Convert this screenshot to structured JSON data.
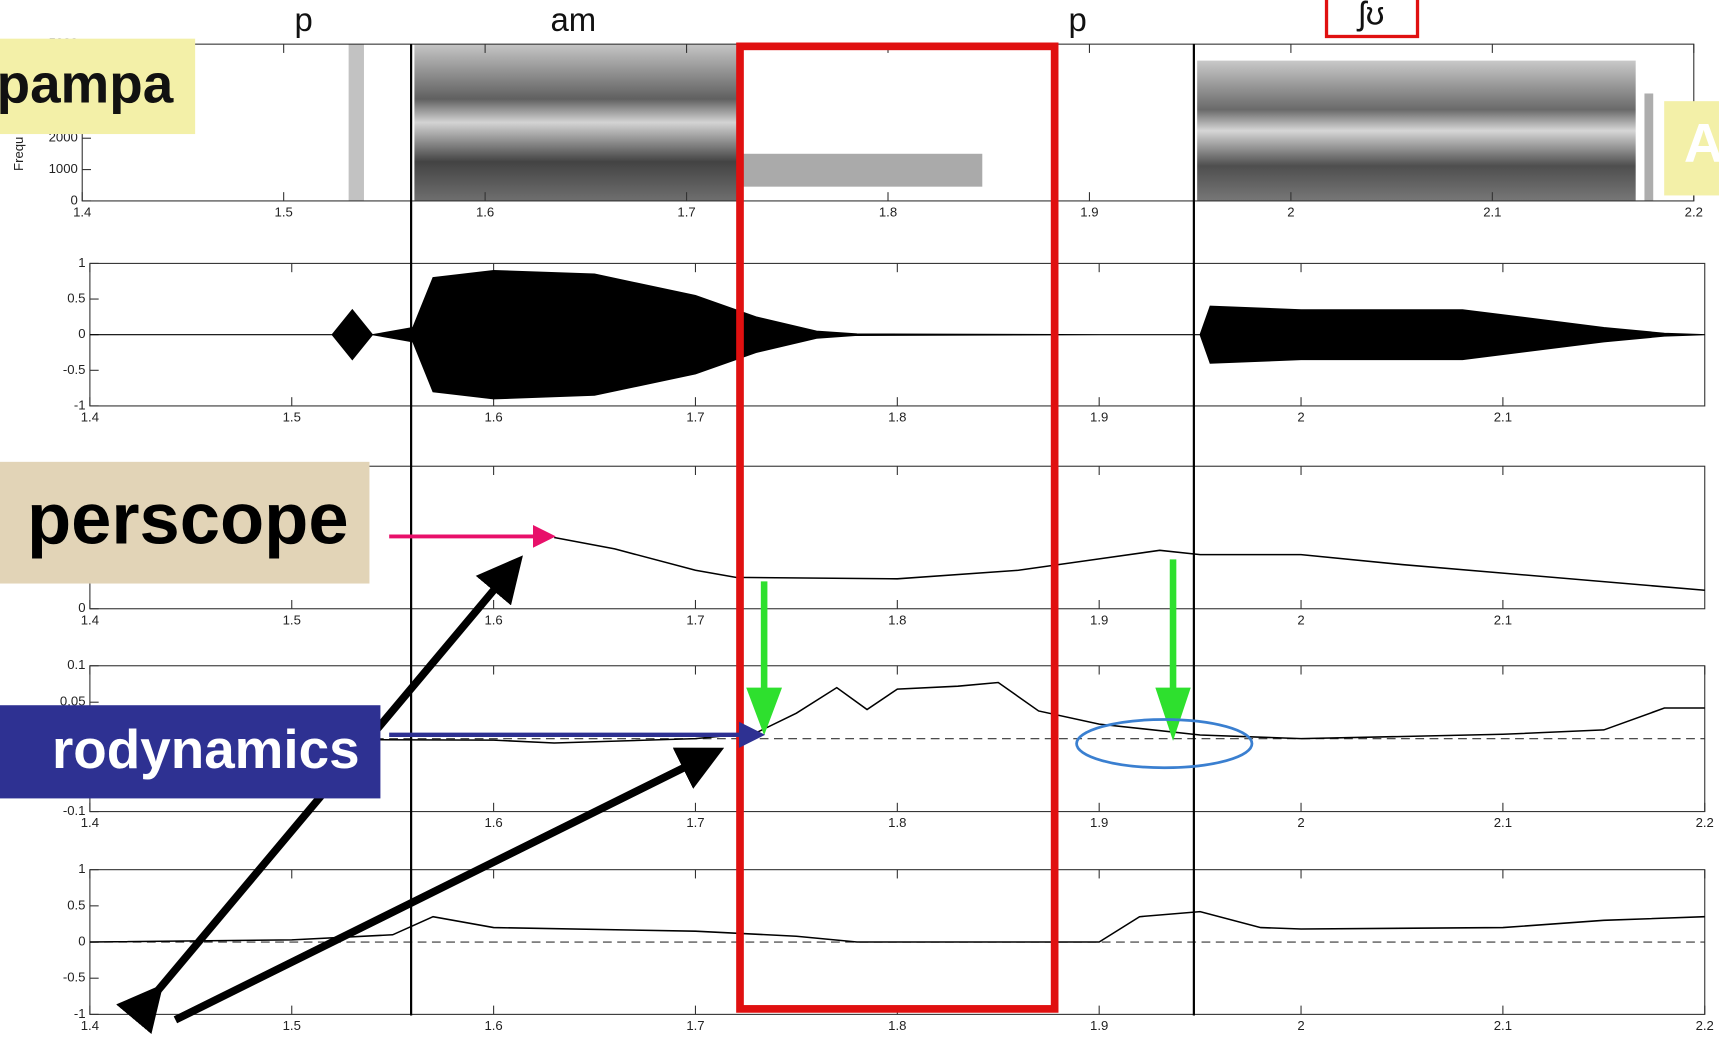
{
  "annotations": {
    "phonemes": [
      "p",
      "am",
      "p",
      "ʃʊ"
    ],
    "labels": [
      "pampa",
      "perscope",
      "rodynamics",
      "A"
    ]
  },
  "chart_data": [
    {
      "type": "spectrogram",
      "ylabel": "Frequ",
      "xlim": [
        1.4,
        2.2
      ],
      "xticks": [
        1.4,
        1.5,
        1.6,
        1.7,
        1.8,
        1.9,
        2,
        2.1,
        2.2
      ],
      "ylim": [
        0,
        5000
      ],
      "yticks": [
        0,
        1000,
        2000,
        5000
      ]
    },
    {
      "type": "waveform",
      "xlim": [
        1.4,
        2.2
      ],
      "xticks": [
        1.4,
        1.5,
        1.6,
        1.7,
        1.8,
        1.9,
        2,
        2.1
      ],
      "ylim": [
        -1,
        1
      ],
      "yticks": [
        1,
        0.5,
        0,
        -0.5,
        -1
      ],
      "x": [
        1.4,
        1.52,
        1.53,
        1.54,
        1.56,
        1.57,
        1.6,
        1.65,
        1.7,
        1.73,
        1.76,
        1.78,
        1.9,
        1.95,
        1.955,
        2.0,
        2.08,
        2.15,
        2.18,
        2.2
      ],
      "values": [
        0,
        0,
        0.35,
        0,
        0.1,
        0.8,
        0.9,
        0.85,
        0.55,
        0.25,
        0.05,
        0.01,
        0,
        0,
        0.4,
        0.35,
        0.35,
        0.1,
        0.02,
        0
      ],
      "color": "#000"
    },
    {
      "type": "line",
      "xlim": [
        1.4,
        2.2
      ],
      "xticks": [
        1.4,
        1.5,
        1.6,
        1.7,
        1.8,
        1.9,
        2,
        2.1
      ],
      "ylim": [
        0,
        1
      ],
      "yticks": [
        0
      ],
      "x": [
        1.63,
        1.66,
        1.7,
        1.72,
        1.8,
        1.86,
        1.9,
        1.93,
        1.95,
        2.0,
        2.05,
        2.1,
        2.2
      ],
      "values": [
        0.5,
        0.42,
        0.27,
        0.22,
        0.21,
        0.27,
        0.35,
        0.41,
        0.38,
        0.38,
        0.31,
        0.25,
        0.13
      ],
      "color": "#000"
    },
    {
      "type": "line",
      "xlim": [
        1.4,
        2.2
      ],
      "xticks": [
        1.4,
        1.6,
        1.7,
        1.8,
        1.9,
        2,
        2.1,
        2.2
      ],
      "ylim": [
        -0.1,
        0.1
      ],
      "yticks": [
        0.1,
        0.05,
        -0.1
      ],
      "hline": 0,
      "x": [
        1.4,
        1.6,
        1.63,
        1.7,
        1.73,
        1.75,
        1.77,
        1.785,
        1.8,
        1.83,
        1.85,
        1.87,
        1.9,
        1.95,
        2.0,
        2.1,
        2.15,
        2.18,
        2.2
      ],
      "values": [
        0,
        -0.002,
        -0.006,
        0,
        0.008,
        0.035,
        0.07,
        0.04,
        0.068,
        0.072,
        0.077,
        0.038,
        0.02,
        0.005,
        0,
        0.006,
        0.012,
        0.042,
        0.042
      ],
      "color": "#000"
    },
    {
      "type": "line",
      "xlim": [
        1.4,
        2.2
      ],
      "xticks": [
        1.4,
        1.5,
        1.6,
        1.7,
        1.8,
        1.9,
        2,
        2.1,
        2.2
      ],
      "ylim": [
        -1,
        1
      ],
      "yticks": [
        1,
        0.5,
        0,
        -0.5,
        -1
      ],
      "hline": 0,
      "x": [
        1.4,
        1.5,
        1.55,
        1.57,
        1.6,
        1.7,
        1.75,
        1.78,
        1.9,
        1.92,
        1.95,
        1.98,
        2.0,
        2.1,
        2.15,
        2.2
      ],
      "values": [
        0,
        0.03,
        0.1,
        0.35,
        0.2,
        0.15,
        0.08,
        0,
        0,
        0.35,
        0.42,
        0.2,
        0.18,
        0.2,
        0.3,
        0.35
      ],
      "color": "#000"
    }
  ]
}
